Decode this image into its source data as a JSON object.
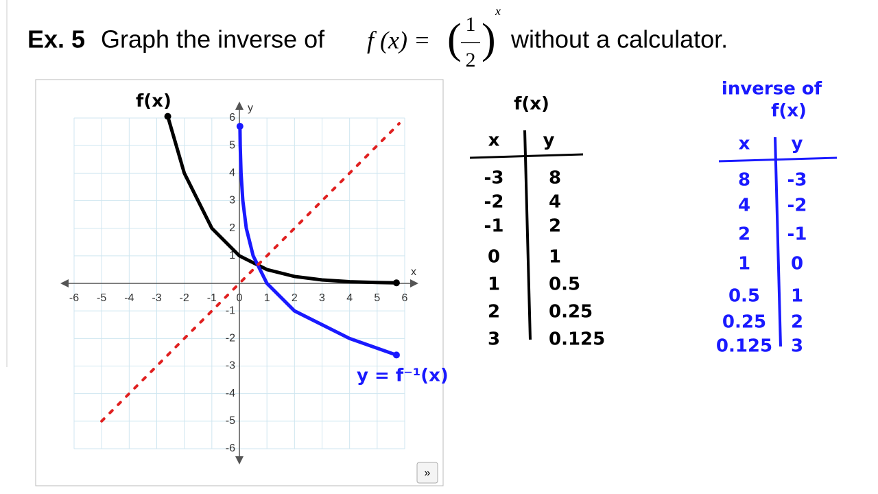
{
  "title": {
    "label": "Ex. 5",
    "text": "Graph the inverse of",
    "function": "f (x) =",
    "numerator": "1",
    "denominator": "2",
    "exponent": "x",
    "text_after": "without a calculator."
  },
  "graph": {
    "type": "line",
    "x_label": "x",
    "y_label": "y",
    "xlim": [
      -6,
      6
    ],
    "ylim": [
      -6,
      6
    ],
    "xticks": [
      -6,
      -5,
      -4,
      -3,
      -2,
      -1,
      0,
      1,
      2,
      3,
      4,
      5,
      6
    ],
    "yticks": [
      -6,
      -5,
      -4,
      -3,
      -2,
      -1,
      1,
      2,
      3,
      4,
      5,
      6
    ],
    "grid": true,
    "series": [
      {
        "name": "f(x)",
        "color": "#000000",
        "x": [
          -2.6,
          -2,
          -1,
          0,
          1,
          2,
          3,
          4,
          5,
          5.7
        ],
        "y": [
          6.06,
          4,
          2,
          1,
          0.5,
          0.25,
          0.125,
          0.06,
          0.03,
          0.02
        ]
      },
      {
        "name": "y = f⁻¹(x)",
        "color": "#1a1aff",
        "x": [
          0.02,
          0.03,
          0.06,
          0.125,
          0.25,
          0.5,
          1,
          2,
          4,
          5.7
        ],
        "y": [
          5.7,
          5,
          4,
          3,
          2,
          1,
          0,
          -1,
          -2,
          -2.6
        ]
      },
      {
        "color": "#e02020",
        "x": [
          -5,
          5.8
        ],
        "y": [
          -5,
          5.8
        ]
      }
    ]
  },
  "tables": [
    {
      "title": "f(x)",
      "color": "#000000",
      "header": [
        "x",
        "y"
      ],
      "rows": [
        [
          "-3",
          "8"
        ],
        [
          "-2",
          "4"
        ],
        [
          "-1",
          "2"
        ],
        [
          "0",
          "1"
        ],
        [
          "1",
          "0.5"
        ],
        [
          "2",
          "0.25"
        ],
        [
          "3",
          "0.125"
        ]
      ]
    },
    {
      "title": "inverse of",
      "subtitle": "f(x)",
      "color": "#1a1aff",
      "header": [
        "x",
        "y"
      ],
      "rows": [
        [
          "8",
          "-3"
        ],
        [
          "4",
          "-2"
        ],
        [
          "2",
          "-1"
        ],
        [
          "1",
          "0"
        ],
        [
          "0.5",
          "1"
        ],
        [
          "0.25",
          "2"
        ],
        [
          "0.125",
          "3"
        ]
      ]
    }
  ]
}
